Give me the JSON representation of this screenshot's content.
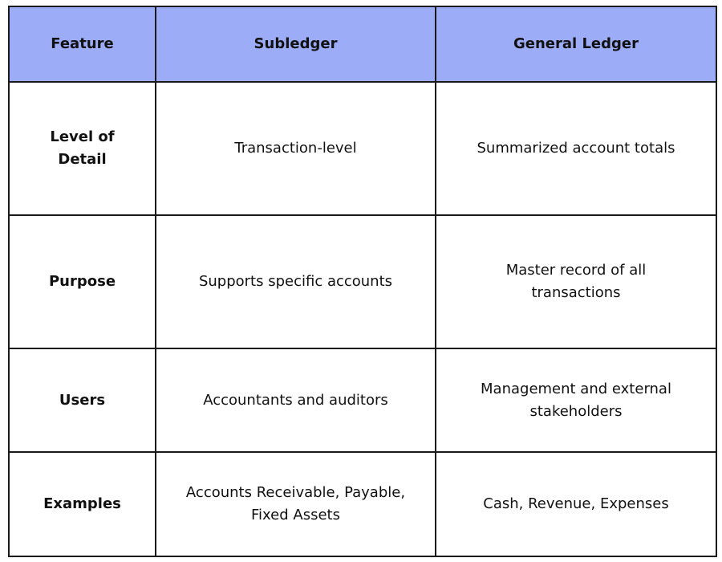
{
  "table": {
    "headers": [
      "Feature",
      "Subledger",
      "General Ledger"
    ],
    "rows": [
      [
        "Level of Detail",
        "Transaction-level",
        "Summarized account totals"
      ],
      [
        "Purpose",
        "Supports specific accounts",
        "Master record of all transactions"
      ],
      [
        "Users",
        "Accountants and auditors",
        "Management and external stakeholders"
      ],
      [
        "Examples",
        "Accounts Receivable, Payable, Fixed Assets",
        "Cash, Revenue, Expenses"
      ]
    ],
    "header_color": "#9cacf7"
  }
}
